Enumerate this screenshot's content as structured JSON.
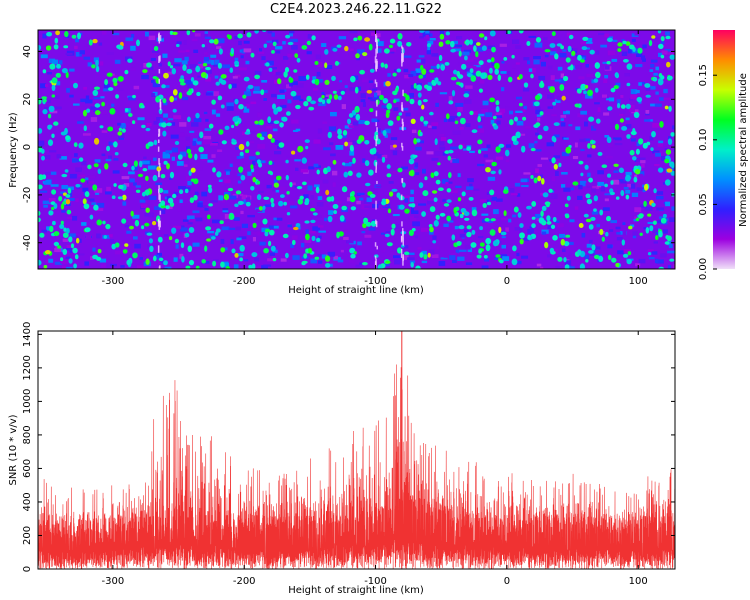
{
  "title": "C2E4.2023.246.22.11.G22",
  "chart_data": [
    {
      "type": "heatmap",
      "xlabel": "Height of straight line (km)",
      "ylabel": "Frequency (Hz)",
      "xlim": [
        -357,
        128
      ],
      "ylim": [
        -51,
        49
      ],
      "xticks": [
        -300,
        -200,
        -100,
        0,
        100
      ],
      "yticks": [
        -40,
        -20,
        0,
        20,
        40
      ],
      "colorbar": {
        "label": "Normalized spectral amplitude",
        "range": [
          0,
          0.185
        ],
        "ticks": [
          0.0,
          0.05,
          0.1,
          0.15
        ],
        "tick_labels": [
          "0.00",
          "0.05",
          "0.10",
          "0.15"
        ],
        "colormap": [
          "#f0e0f8",
          "#9c00e0",
          "#2f20ff",
          "#0090ff",
          "#00f0c8",
          "#00ff20",
          "#c8ff00",
          "#ff8c00",
          "#ff0060"
        ]
      },
      "background_level": 0.03,
      "hot_columns_x": [
        -265,
        -100,
        -80
      ],
      "grid": false
    },
    {
      "type": "line",
      "xlabel": "Height of straight line (km)",
      "ylabel": "SNR (10 * v/v)",
      "xlim": [
        -357,
        128
      ],
      "ylim": [
        0,
        1420
      ],
      "xticks": [
        -300,
        -200,
        -100,
        0,
        100
      ],
      "yticks": [
        0,
        200,
        400,
        600,
        800,
        1000,
        1200,
        1400
      ],
      "color": "#f03232",
      "grid": false,
      "envelope_x": [
        -357,
        -340,
        -320,
        -300,
        -280,
        -260,
        -250,
        -240,
        -220,
        -200,
        -180,
        -160,
        -140,
        -120,
        -100,
        -90,
        -80,
        -70,
        -60,
        -40,
        -20,
        0,
        20,
        40,
        60,
        80,
        100,
        128
      ],
      "envelope_y": [
        560,
        480,
        500,
        560,
        640,
        1100,
        1150,
        860,
        800,
        640,
        560,
        620,
        700,
        820,
        900,
        960,
        1420,
        960,
        780,
        700,
        640,
        580,
        540,
        560,
        600,
        560,
        540,
        620
      ],
      "baseline_y": [
        200,
        195,
        200,
        210,
        230,
        260,
        270,
        250,
        235,
        225,
        220,
        230,
        250,
        270,
        290,
        300,
        320,
        300,
        270,
        250,
        230,
        220,
        215,
        220,
        225,
        215,
        210,
        215
      ]
    }
  ]
}
